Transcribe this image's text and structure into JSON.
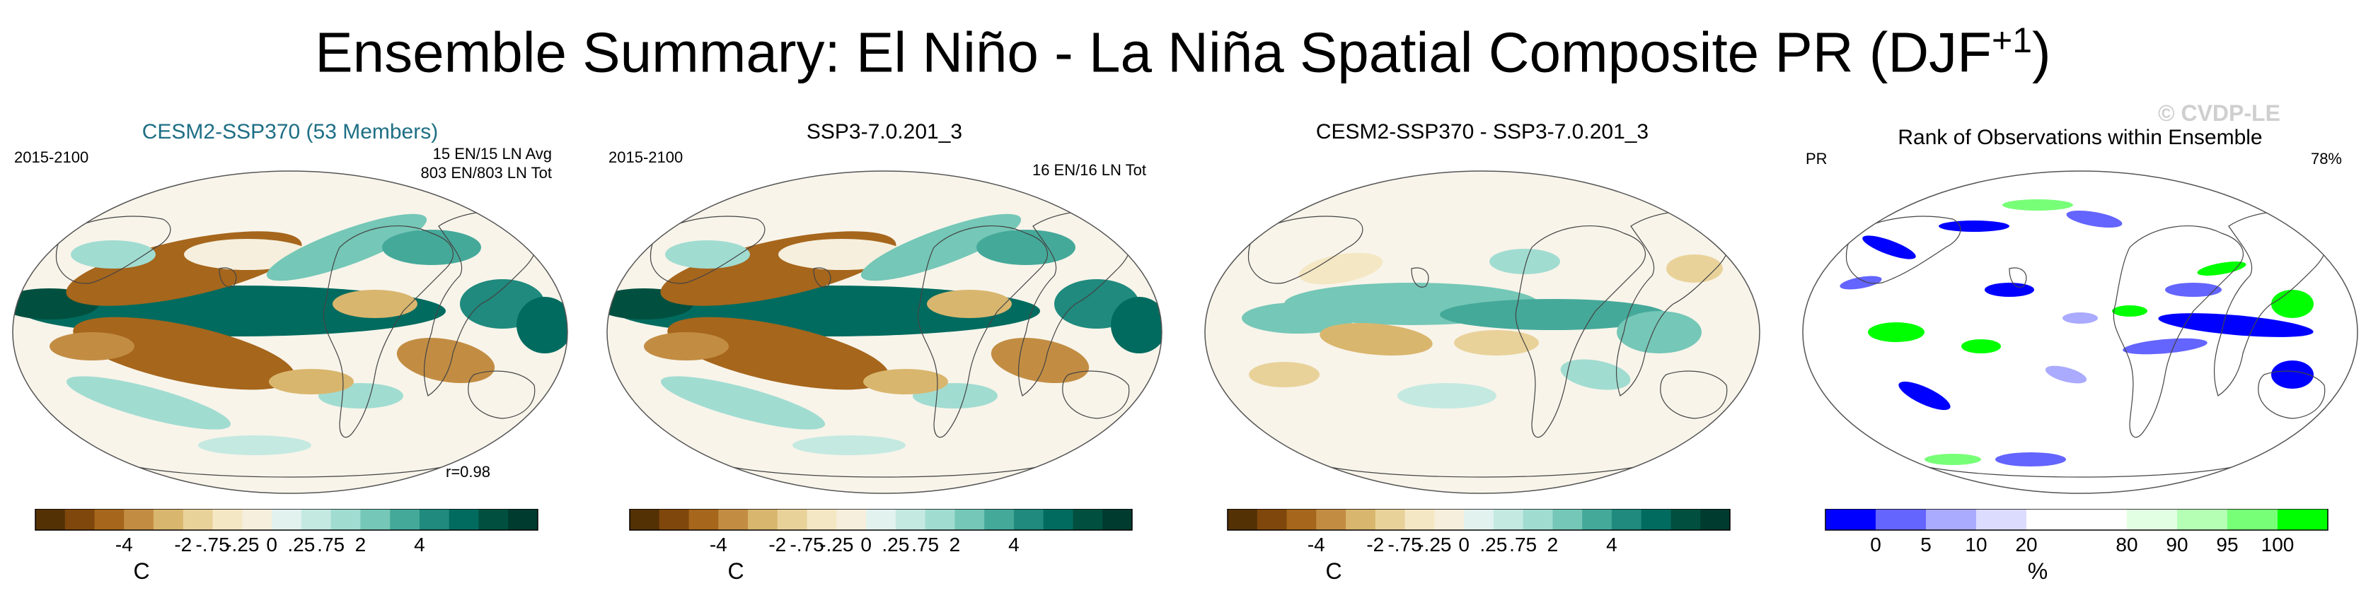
{
  "title": {
    "main": "Ensemble Summary: El Niño - La Niña Spatial Composite PR (DJF",
    "sup": "+1",
    "close": ")"
  },
  "watermark": "© CVDP-LE",
  "panels": [
    {
      "title": "CESM2-SSP370 (53 Members)",
      "title_color": "#1e6f85",
      "left_label": "2015-2100",
      "right_line1": "15 EN/15 LN Avg",
      "right_line2": "803 EN/803 LN Tot",
      "bottom_label": "r=0.98",
      "colorbar": "diverging"
    },
    {
      "title": "SSP3-7.0.201_3",
      "title_color": "#000000",
      "left_label": "2015-2100",
      "right_line1": "16 EN/16 LN Tot",
      "right_line2": "",
      "bottom_label": "",
      "colorbar": "diverging"
    },
    {
      "title": "CESM2-SSP370 - SSP3-7.0.201_3",
      "title_color": "#000000",
      "left_label": "",
      "right_line1": "",
      "right_line2": "",
      "bottom_label": "",
      "colorbar": "diverging"
    },
    {
      "title": "Rank of Observations within Ensemble",
      "title_color": "#000000",
      "left_label": "PR",
      "right_line1": "78%",
      "right_line2": "",
      "bottom_label": "",
      "colorbar": "rank"
    }
  ],
  "diverging_colorbar": {
    "colors": [
      "#543005",
      "#7f470b",
      "#a6661c",
      "#c28d43",
      "#d9b66e",
      "#e9d29a",
      "#f4e7c3",
      "#f6efdd",
      "#e2f2ef",
      "#c4e9e1",
      "#a1dcd1",
      "#75c7b7",
      "#45a99a",
      "#1f8a7d",
      "#026b5f",
      "#01503f",
      "#003b2f"
    ],
    "tick_labels": [
      "-4",
      "-2",
      "-.75",
      "-.25",
      "0",
      ".25",
      ".75",
      "2",
      "4"
    ],
    "units": "C"
  },
  "rank_colorbar": {
    "colors": [
      "#0000ff",
      "#6464ff",
      "#aaaaff",
      "#dcdcff",
      "#ffffff",
      "#ffffff",
      "#e3ffe3",
      "#b4ffb4",
      "#78ff78",
      "#00ff00"
    ],
    "tick_labels": [
      "0",
      "5",
      "10",
      "20",
      "80",
      "90",
      "95",
      "100"
    ],
    "units": "%"
  }
}
